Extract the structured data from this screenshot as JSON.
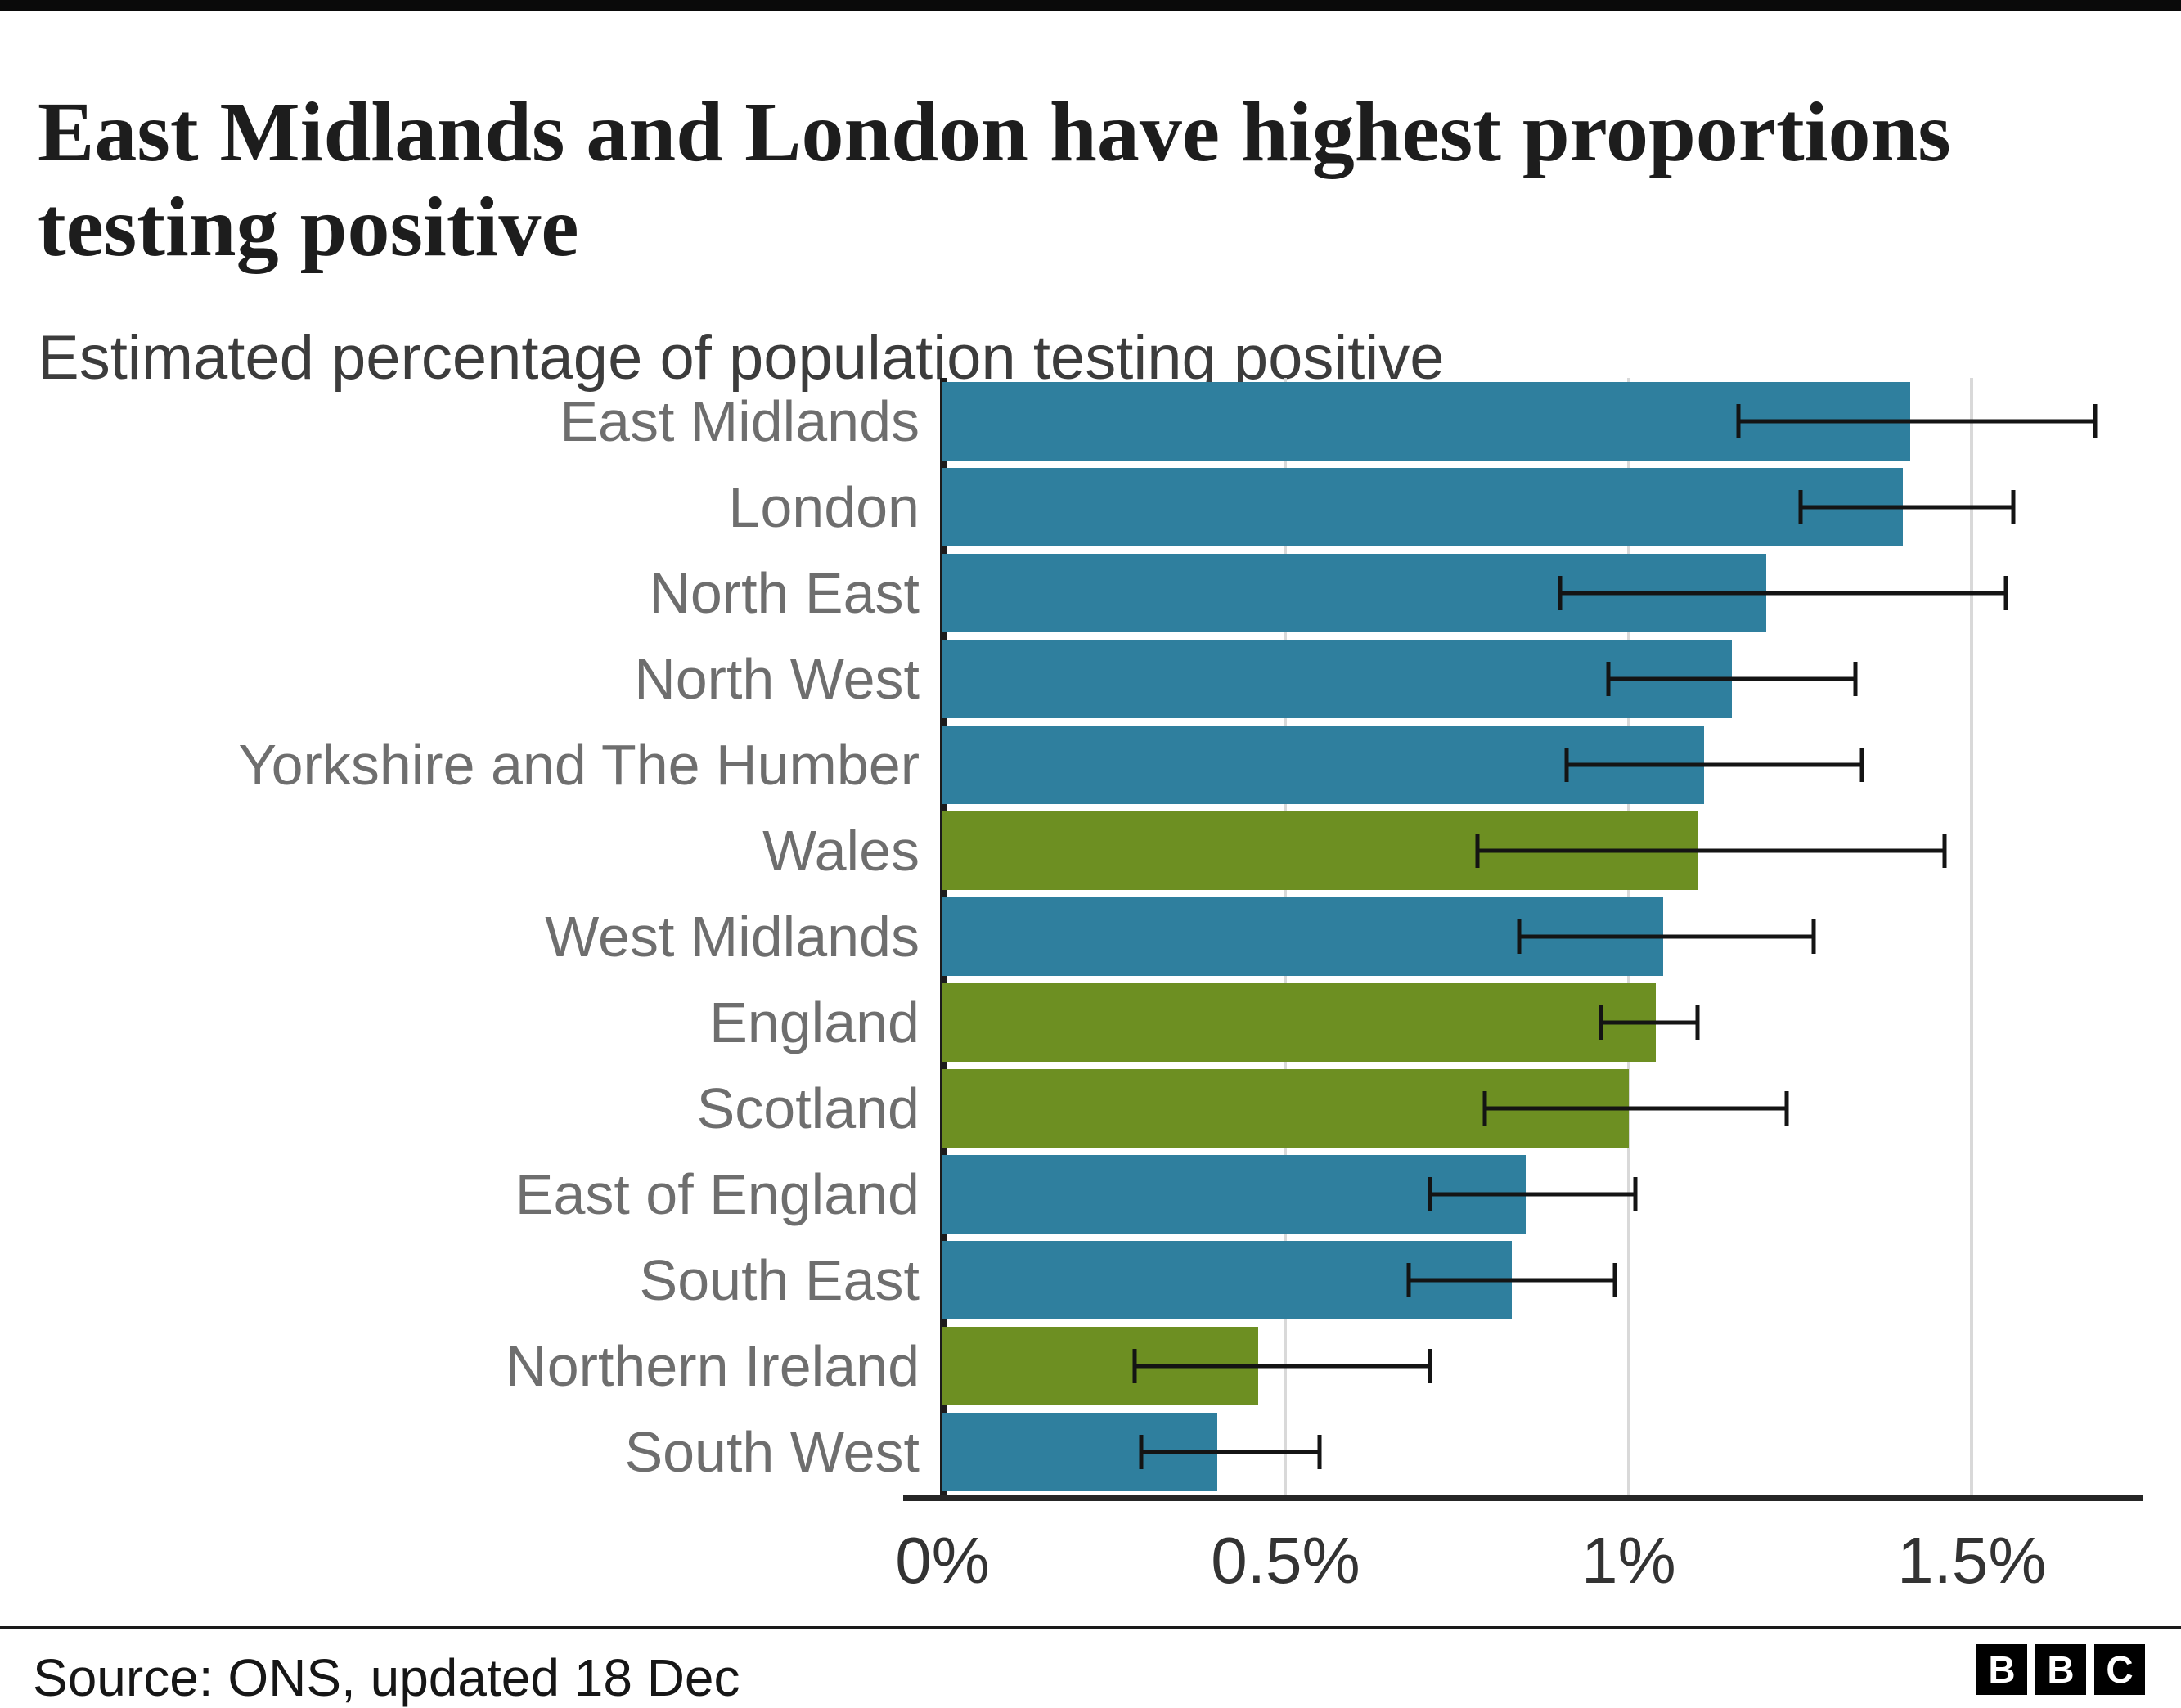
{
  "header": {
    "title": "East Midlands and London have highest proportions testing positive",
    "subtitle": "Estimated percentage of population testing positive"
  },
  "chart_data": {
    "type": "bar",
    "orientation": "horizontal",
    "title": "East Midlands and London have highest proportions testing positive",
    "xlabel": "Estimated percentage of population testing positive",
    "xlim": [
      0,
      1.75
    ],
    "grid": true,
    "ticks": [
      {
        "v": 0,
        "label": "0%"
      },
      {
        "v": 0.5,
        "label": "0.5%"
      },
      {
        "v": 1,
        "label": "1%"
      },
      {
        "v": 1.5,
        "label": "1.5%"
      }
    ],
    "colors": {
      "teal": "#2f7f9e",
      "green": "#6d8f22"
    },
    "bars": [
      {
        "label": "East Midlands",
        "value": 1.41,
        "color": "teal",
        "ci": [
          1.16,
          1.68
        ]
      },
      {
        "label": "London",
        "value": 1.4,
        "color": "teal",
        "ci": [
          1.25,
          1.56
        ]
      },
      {
        "label": "North East",
        "value": 1.2,
        "color": "teal",
        "ci": [
          0.9,
          1.55
        ]
      },
      {
        "label": "North West",
        "value": 1.15,
        "color": "teal",
        "ci": [
          0.97,
          1.33
        ]
      },
      {
        "label": "Yorkshire and The Humber",
        "value": 1.11,
        "color": "teal",
        "ci": [
          0.91,
          1.34
        ]
      },
      {
        "label": "Wales",
        "value": 1.1,
        "color": "green",
        "ci": [
          0.78,
          1.46
        ]
      },
      {
        "label": "West Midlands",
        "value": 1.05,
        "color": "teal",
        "ci": [
          0.84,
          1.27
        ]
      },
      {
        "label": "England",
        "value": 1.04,
        "color": "green",
        "ci": [
          0.96,
          1.1
        ]
      },
      {
        "label": "Scotland",
        "value": 1.0,
        "color": "green",
        "ci": [
          0.79,
          1.23
        ]
      },
      {
        "label": "East of England",
        "value": 0.85,
        "color": "teal",
        "ci": [
          0.71,
          1.01
        ]
      },
      {
        "label": "South East",
        "value": 0.83,
        "color": "teal",
        "ci": [
          0.68,
          0.98
        ]
      },
      {
        "label": "Northern Ireland",
        "value": 0.46,
        "color": "green",
        "ci": [
          0.28,
          0.71
        ]
      },
      {
        "label": "South West",
        "value": 0.4,
        "color": "teal",
        "ci": [
          0.29,
          0.55
        ]
      }
    ]
  },
  "footer": {
    "source": "Source: ONS, updated 18 Dec",
    "logo_letters": [
      "B",
      "B",
      "C"
    ]
  }
}
